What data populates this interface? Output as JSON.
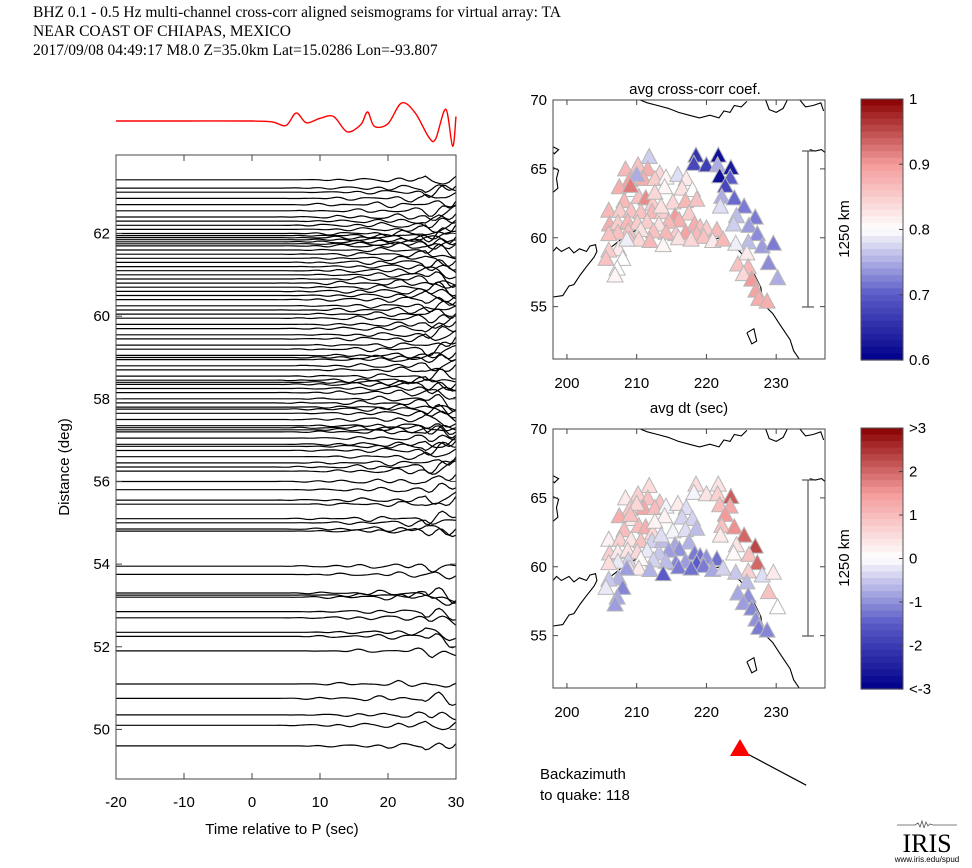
{
  "header": {
    "line1": "BHZ  0.1 - 0.5 Hz  multi-channel cross-corr aligned seismograms for virtual array: TA",
    "line2": "NEAR COAST OF CHIAPAS, MEXICO",
    "line3": "2017/09/08  04:49:17  M8.0  Z=35.0km Lat=15.0286 Lon=-93.807"
  },
  "colors": {
    "stack_trace": "#ff0000",
    "traces": "#000000",
    "quake_marker": "#ff0000",
    "colormap_low": "#000080",
    "colormap_mid": "#ffffff",
    "colormap_high": "#800000"
  },
  "backazimuth": {
    "line1": "Backazimuth",
    "line2": "to quake:  118",
    "value_deg": 118
  },
  "logo": {
    "name": "IRIS",
    "url_text": "www.iris.edu/spud"
  },
  "chart_data": [
    {
      "id": "record-section",
      "type": "line",
      "title": "",
      "xlabel": "Time relative to P (sec)",
      "ylabel": "Distance (deg)",
      "xlim": [
        -20,
        30
      ],
      "ylim": [
        48.8,
        63.9
      ],
      "xticks": [
        -20,
        -10,
        0,
        10,
        20,
        30
      ],
      "yticks": [
        50,
        52,
        54,
        56,
        58,
        60,
        62
      ],
      "grid": false,
      "trace_distances_deg": [
        63.3,
        63.1,
        63.0,
        62.85,
        62.7,
        62.55,
        62.4,
        62.3,
        62.2,
        62.1,
        62.0,
        61.95,
        61.9,
        61.85,
        61.8,
        61.75,
        61.7,
        61.6,
        61.5,
        61.4,
        61.3,
        61.2,
        61.1,
        61.0,
        60.9,
        60.8,
        60.7,
        60.6,
        60.5,
        60.4,
        60.25,
        60.15,
        60.05,
        59.95,
        59.8,
        59.7,
        59.55,
        59.45,
        59.3,
        59.2,
        59.05,
        59.0,
        58.95,
        58.8,
        58.7,
        58.55,
        58.45,
        58.4,
        58.35,
        58.25,
        58.15,
        58.0,
        57.9,
        57.8,
        57.75,
        57.65,
        57.5,
        57.35,
        57.3,
        57.25,
        57.2,
        57.05,
        56.9,
        56.85,
        56.75,
        56.6,
        56.45,
        56.35,
        56.25,
        56.0,
        55.8,
        55.55,
        55.45,
        55.1,
        55.0,
        54.85,
        54.8,
        53.95,
        53.75,
        53.3,
        53.25,
        53.2,
        52.85,
        52.7,
        52.35,
        52.25,
        51.9,
        51.1,
        50.75,
        50.35,
        50.1,
        49.6
      ],
      "stack_trace": {
        "label": "stack",
        "color": "#ff0000",
        "t": [
          -20,
          -10,
          0,
          3,
          5,
          6.5,
          8,
          10,
          12,
          14,
          16,
          17,
          18,
          20,
          22,
          24,
          26,
          27,
          28.5,
          29.5,
          30
        ],
        "amp": [
          0,
          0,
          0,
          -0.1,
          -0.5,
          0.9,
          -0.2,
          0.3,
          0.5,
          -1.2,
          -0.4,
          1.0,
          -0.6,
          -0.3,
          2.0,
          0.9,
          -1.8,
          -2.0,
          1.3,
          -2.8,
          0.5
        ]
      }
    },
    {
      "id": "map-cc",
      "type": "scatter",
      "title": "avg cross-corr coef.",
      "xlabel": "",
      "ylabel": "",
      "xlim": [
        198,
        237
      ],
      "ylim": [
        51.2,
        70
      ],
      "xticks": [
        200,
        210,
        220,
        230
      ],
      "yticks": [
        55,
        60,
        65,
        70
      ],
      "colorbar": {
        "min": 0.6,
        "max": 1.0,
        "ticks": [
          "0.6",
          "0.7",
          "0.8",
          "0.9",
          "1"
        ],
        "tick_values": [
          0.6,
          0.7,
          0.8,
          0.9,
          1.0
        ]
      },
      "scale_bar_label": "1250 km",
      "marker": "triangle"
    },
    {
      "id": "map-dt",
      "type": "scatter",
      "title": "avg dt (sec)",
      "xlabel": "",
      "ylabel": "",
      "xlim": [
        198,
        237
      ],
      "ylim": [
        51.2,
        70
      ],
      "xticks": [
        200,
        210,
        220,
        230
      ],
      "yticks": [
        55,
        60,
        65,
        70
      ],
      "colorbar": {
        "min": -3,
        "max": 3,
        "ticks": [
          "<-3",
          "-2",
          "-1",
          "0",
          "1",
          "2",
          ">3"
        ],
        "tick_values": [
          -3,
          -2,
          -1,
          0,
          1,
          2,
          3
        ]
      },
      "scale_bar_label": "1250 km",
      "marker": "triangle"
    }
  ],
  "stations": [
    {
      "lon": 218.5,
      "lat": 66.0,
      "cc": 0.66,
      "dt": 0.5
    },
    {
      "lon": 221.7,
      "lat": 66.0,
      "cc": 0.62,
      "dt": 0.4
    },
    {
      "lon": 218.2,
      "lat": 65.4,
      "cc": 0.68,
      "dt": -0.1
    },
    {
      "lon": 220.0,
      "lat": 65.3,
      "cc": 0.67,
      "dt": 0.4
    },
    {
      "lon": 221.6,
      "lat": 65.3,
      "cc": 0.75,
      "dt": 0.7
    },
    {
      "lon": 223.5,
      "lat": 65.1,
      "cc": 0.63,
      "dt": 2.1
    },
    {
      "lon": 221.9,
      "lat": 64.5,
      "cc": 0.62,
      "dt": 1.0
    },
    {
      "lon": 223.4,
      "lat": 64.4,
      "cc": 0.7,
      "dt": 1.3
    },
    {
      "lon": 222.7,
      "lat": 63.8,
      "cc": 0.68,
      "dt": 1.5
    },
    {
      "lon": 222.2,
      "lat": 63.0,
      "cc": 0.75,
      "dt": 0.9
    },
    {
      "lon": 224.0,
      "lat": 62.9,
      "cc": 0.71,
      "dt": 1.6
    },
    {
      "lon": 222.0,
      "lat": 62.3,
      "cc": 0.78,
      "dt": 0.3
    },
    {
      "lon": 225.4,
      "lat": 62.3,
      "cc": 0.72,
      "dt": 2.0
    },
    {
      "lon": 224.3,
      "lat": 61.6,
      "cc": 0.76,
      "dt": 0.4
    },
    {
      "lon": 227.0,
      "lat": 61.5,
      "cc": 0.72,
      "dt": 2.3
    },
    {
      "lon": 223.9,
      "lat": 61.0,
      "cc": 0.77,
      "dt": 0.1
    },
    {
      "lon": 226.1,
      "lat": 60.9,
      "cc": 0.74,
      "dt": 0.9
    },
    {
      "lon": 227.3,
      "lat": 60.3,
      "cc": 0.73,
      "dt": 2.0
    },
    {
      "lon": 226.0,
      "lat": 59.7,
      "cc": 0.76,
      "dt": 0.7
    },
    {
      "lon": 228.0,
      "lat": 59.4,
      "cc": 0.74,
      "dt": -0.3
    },
    {
      "lon": 229.6,
      "lat": 59.6,
      "cc": 0.72,
      "dt": 0.3
    },
    {
      "lon": 228.9,
      "lat": 58.2,
      "cc": 0.73,
      "dt": 0.9
    },
    {
      "lon": 230.2,
      "lat": 57.1,
      "cc": 0.75,
      "dt": 0.0
    },
    {
      "lon": 224.2,
      "lat": 59.6,
      "cc": 0.79,
      "dt": -0.5
    },
    {
      "lon": 225.8,
      "lat": 58.9,
      "cc": 0.82,
      "dt": -0.6
    },
    {
      "lon": 224.5,
      "lat": 58.1,
      "cc": 0.86,
      "dt": -0.8
    },
    {
      "lon": 226.0,
      "lat": 57.9,
      "cc": 0.87,
      "dt": -1.0
    },
    {
      "lon": 225.3,
      "lat": 57.4,
      "cc": 0.84,
      "dt": -0.9
    },
    {
      "lon": 226.5,
      "lat": 57.0,
      "cc": 0.9,
      "dt": -1.1
    },
    {
      "lon": 227.1,
      "lat": 56.2,
      "cc": 0.89,
      "dt": -1.0
    },
    {
      "lon": 227.5,
      "lat": 55.6,
      "cc": 0.88,
      "dt": -1.2
    },
    {
      "lon": 228.7,
      "lat": 55.4,
      "cc": 0.88,
      "dt": -1.1
    },
    {
      "lon": 211.8,
      "lat": 65.9,
      "cc": 0.77,
      "dt": 0.5
    },
    {
      "lon": 210.2,
      "lat": 65.3,
      "cc": 0.86,
      "dt": 0.7
    },
    {
      "lon": 211.6,
      "lat": 65.0,
      "cc": 0.88,
      "dt": 0.9
    },
    {
      "lon": 208.4,
      "lat": 65.0,
      "cc": 0.87,
      "dt": 0.3
    },
    {
      "lon": 213.3,
      "lat": 64.7,
      "cc": 0.84,
      "dt": 0.9
    },
    {
      "lon": 211.0,
      "lat": 64.3,
      "cc": 0.88,
      "dt": 1.3
    },
    {
      "lon": 209.0,
      "lat": 64.2,
      "cc": 0.89,
      "dt": 0.8
    },
    {
      "lon": 212.6,
      "lat": 64.3,
      "cc": 0.85,
      "dt": 1.0
    },
    {
      "lon": 214.2,
      "lat": 64.4,
      "cc": 0.81,
      "dt": -0.1
    },
    {
      "lon": 215.9,
      "lat": 64.6,
      "cc": 0.78,
      "dt": 0.3
    },
    {
      "lon": 217.1,
      "lat": 64.3,
      "cc": 0.82,
      "dt": -0.3
    },
    {
      "lon": 207.5,
      "lat": 63.7,
      "cc": 0.88,
      "dt": 1.2
    },
    {
      "lon": 209.4,
      "lat": 63.5,
      "cc": 0.8,
      "dt": 0.3
    },
    {
      "lon": 214.0,
      "lat": 63.7,
      "cc": 0.81,
      "dt": 0.2
    },
    {
      "lon": 216.5,
      "lat": 63.6,
      "cc": 0.83,
      "dt": -0.4
    },
    {
      "lon": 218.0,
      "lat": 63.5,
      "cc": 0.8,
      "dt": -0.4
    },
    {
      "lon": 210.3,
      "lat": 63.0,
      "cc": 0.86,
      "dt": 1.0
    },
    {
      "lon": 211.3,
      "lat": 62.9,
      "cc": 0.91,
      "dt": 1.2
    },
    {
      "lon": 208.2,
      "lat": 62.7,
      "cc": 0.87,
      "dt": 1.0
    },
    {
      "lon": 212.3,
      "lat": 62.5,
      "cc": 0.85,
      "dt": 0.6
    },
    {
      "lon": 215.2,
      "lat": 62.6,
      "cc": 0.84,
      "dt": -0.1
    },
    {
      "lon": 217.0,
      "lat": 62.7,
      "cc": 0.87,
      "dt": -0.3
    },
    {
      "lon": 218.6,
      "lat": 62.8,
      "cc": 0.86,
      "dt": -0.6
    },
    {
      "lon": 206.0,
      "lat": 62.0,
      "cc": 0.87,
      "dt": 0.2
    },
    {
      "lon": 207.6,
      "lat": 62.0,
      "cc": 0.85,
      "dt": 0.7
    },
    {
      "lon": 209.2,
      "lat": 62.0,
      "cc": 0.86,
      "dt": 0.4
    },
    {
      "lon": 210.6,
      "lat": 61.9,
      "cc": 0.86,
      "dt": 0.9
    },
    {
      "lon": 212.2,
      "lat": 61.9,
      "cc": 0.87,
      "dt": -0.4
    },
    {
      "lon": 213.7,
      "lat": 61.9,
      "cc": 0.85,
      "dt": -0.6
    },
    {
      "lon": 215.5,
      "lat": 61.6,
      "cc": 0.9,
      "dt": -0.8
    },
    {
      "lon": 217.5,
      "lat": 61.8,
      "cc": 0.85,
      "dt": -0.7
    },
    {
      "lon": 216.1,
      "lat": 61.3,
      "cc": 0.88,
      "dt": -1.0
    },
    {
      "lon": 214.6,
      "lat": 61.2,
      "cc": 0.87,
      "dt": -0.9
    },
    {
      "lon": 218.3,
      "lat": 61.0,
      "cc": 0.88,
      "dt": -1.2
    },
    {
      "lon": 219.1,
      "lat": 60.8,
      "cc": 0.86,
      "dt": -1.3
    },
    {
      "lon": 220.0,
      "lat": 60.7,
      "cc": 0.85,
      "dt": -1.0
    },
    {
      "lon": 221.5,
      "lat": 60.6,
      "cc": 0.87,
      "dt": -1.3
    },
    {
      "lon": 206.1,
      "lat": 61.0,
      "cc": 0.88,
      "dt": 0.7
    },
    {
      "lon": 207.3,
      "lat": 61.1,
      "cc": 0.85,
      "dt": 0.3
    },
    {
      "lon": 208.7,
      "lat": 61.2,
      "cc": 0.87,
      "dt": 0.4
    },
    {
      "lon": 210.1,
      "lat": 61.1,
      "cc": 0.85,
      "dt": 0.6
    },
    {
      "lon": 211.5,
      "lat": 61.2,
      "cc": 0.85,
      "dt": -0.2
    },
    {
      "lon": 213.2,
      "lat": 61.0,
      "cc": 0.83,
      "dt": -0.5
    },
    {
      "lon": 217.0,
      "lat": 60.4,
      "cc": 0.89,
      "dt": -0.9
    },
    {
      "lon": 218.6,
      "lat": 60.3,
      "cc": 0.87,
      "dt": -1.5
    },
    {
      "lon": 219.6,
      "lat": 60.1,
      "cc": 0.86,
      "dt": -1.2
    },
    {
      "lon": 215.6,
      "lat": 60.3,
      "cc": 0.85,
      "dt": -1.1
    },
    {
      "lon": 214.2,
      "lat": 60.4,
      "cc": 0.87,
      "dt": -0.6
    },
    {
      "lon": 212.4,
      "lat": 60.5,
      "cc": 0.86,
      "dt": -0.4
    },
    {
      "lon": 210.6,
      "lat": 60.6,
      "cc": 0.83,
      "dt": 0.1
    },
    {
      "lon": 208.8,
      "lat": 60.5,
      "cc": 0.86,
      "dt": -0.4
    },
    {
      "lon": 207.3,
      "lat": 60.4,
      "cc": 0.86,
      "dt": -0.2
    },
    {
      "lon": 206.0,
      "lat": 60.3,
      "cc": 0.86,
      "dt": 0.5
    },
    {
      "lon": 209.0,
      "lat": 59.9,
      "cc": 0.86,
      "dt": 0.4
    },
    {
      "lon": 210.3,
      "lat": 59.9,
      "cc": 0.84,
      "dt": 0.3
    },
    {
      "lon": 211.9,
      "lat": 59.8,
      "cc": 0.87,
      "dt": -0.7
    },
    {
      "lon": 216.0,
      "lat": 60.0,
      "cc": 0.83,
      "dt": -1.2
    },
    {
      "lon": 217.8,
      "lat": 59.9,
      "cc": 0.84,
      "dt": -1.3
    },
    {
      "lon": 213.8,
      "lat": 59.5,
      "cc": 0.81,
      "dt": -1.5
    },
    {
      "lon": 220.9,
      "lat": 59.8,
      "cc": 0.82,
      "dt": -0.8
    },
    {
      "lon": 222.4,
      "lat": 59.9,
      "cc": 0.87,
      "dt": -0.4
    },
    {
      "lon": 207.4,
      "lat": 59.2,
      "cc": 0.82,
      "dt": -0.7
    },
    {
      "lon": 206.0,
      "lat": 59.1,
      "cc": 0.85,
      "dt": -0.5
    },
    {
      "lon": 205.6,
      "lat": 58.5,
      "cc": 0.86,
      "dt": -0.2
    },
    {
      "lon": 208.0,
      "lat": 58.5,
      "cc": 0.8,
      "dt": -1.1
    },
    {
      "lon": 207.2,
      "lat": 57.8,
      "cc": 0.8,
      "dt": -0.8
    },
    {
      "lon": 206.9,
      "lat": 57.3,
      "cc": 0.81,
      "dt": -0.9
    },
    {
      "lon": 208.6,
      "lat": 59.9,
      "cc": 0.79,
      "dt": -0.9
    },
    {
      "lon": 212.6,
      "lat": 63.3,
      "cc": 0.84,
      "dt": 0.2
    },
    {
      "lon": 213.5,
      "lat": 62.3,
      "cc": 0.83,
      "dt": -0.3
    },
    {
      "lon": 210.0,
      "lat": 64.6,
      "cc": 0.75,
      "dt": 0.6
    },
    {
      "lon": 209.1,
      "lat": 63.8,
      "cc": 0.92,
      "dt": 0.9
    }
  ],
  "map_coastlines": [
    [
      [
        198.0,
        66.6
      ],
      [
        198.8,
        66.4
      ],
      [
        198.2,
        66.1
      ],
      [
        198.0,
        66.2
      ]
    ],
    [
      [
        198.0,
        65.1
      ],
      [
        198.8,
        64.9
      ],
      [
        198.5,
        64.3
      ],
      [
        198.7,
        63.6
      ],
      [
        198.0,
        63.3
      ]
    ],
    [
      [
        198.0,
        55.7
      ],
      [
        199.4,
        55.8
      ],
      [
        200.3,
        56.5
      ],
      [
        201.0,
        56.6
      ],
      [
        201.9,
        57.3
      ],
      [
        202.8,
        57.9
      ],
      [
        203.9,
        58.6
      ],
      [
        204.3,
        59.0
      ],
      [
        204.1,
        59.5
      ],
      [
        203.3,
        59.4
      ],
      [
        202.8,
        59.0
      ],
      [
        201.8,
        59.2
      ],
      [
        201.0,
        58.9
      ],
      [
        200.3,
        59.3
      ],
      [
        199.2,
        59.0
      ],
      [
        198.5,
        59.3
      ],
      [
        198.0,
        59.0
      ]
    ],
    [
      [
        204.8,
        58.2
      ],
      [
        205.4,
        58.7
      ],
      [
        206.0,
        59.2
      ],
      [
        206.8,
        59.5
      ],
      [
        207.8,
        59.9
      ],
      [
        208.7,
        60.2
      ],
      [
        209.7,
        60.5
      ],
      [
        210.7,
        60.6
      ]
    ],
    [
      [
        206.3,
        57.2
      ],
      [
        206.8,
        57.7
      ],
      [
        207.3,
        57.7
      ],
      [
        207.6,
        57.3
      ]
    ],
    [
      [
        218.6,
        60.1
      ],
      [
        219.8,
        60.0
      ],
      [
        221.0,
        59.9
      ],
      [
        222.0,
        60.0
      ],
      [
        223.2,
        59.6
      ],
      [
        224.0,
        59.3
      ],
      [
        224.8,
        59.0
      ],
      [
        225.3,
        58.7
      ],
      [
        226.0,
        58.3
      ],
      [
        226.6,
        57.6
      ],
      [
        227.2,
        57.0
      ],
      [
        227.8,
        56.4
      ],
      [
        228.0,
        55.7
      ],
      [
        228.5,
        55.0
      ],
      [
        229.5,
        54.5
      ],
      [
        230.4,
        53.8
      ],
      [
        231.2,
        53.2
      ],
      [
        232.0,
        52.6
      ],
      [
        232.5,
        51.8
      ],
      [
        233.3,
        51.2
      ]
    ],
    [
      [
        225.8,
        53.1
      ],
      [
        226.8,
        53.4
      ],
      [
        227.2,
        52.5
      ],
      [
        226.5,
        52.3
      ],
      [
        225.8,
        53.1
      ]
    ],
    [
      [
        210.5,
        70.0
      ],
      [
        211.5,
        69.8
      ],
      [
        213.0,
        69.6
      ],
      [
        214.5,
        69.4
      ],
      [
        216.0,
        69.1
      ],
      [
        217.5,
        68.9
      ],
      [
        219.0,
        68.7
      ],
      [
        220.5,
        68.9
      ],
      [
        221.8,
        68.7
      ],
      [
        222.5,
        69.2
      ],
      [
        223.4,
        69.1
      ],
      [
        224.0,
        69.6
      ],
      [
        225.0,
        69.5
      ],
      [
        225.8,
        69.9
      ]
    ],
    [
      [
        228.5,
        70.0
      ],
      [
        229.0,
        69.3
      ],
      [
        230.0,
        69.1
      ],
      [
        231.0,
        69.4
      ],
      [
        231.6,
        70.0
      ]
    ],
    [
      [
        233.4,
        70.0
      ],
      [
        234.2,
        69.5
      ],
      [
        235.3,
        69.6
      ],
      [
        236.4,
        69.8
      ],
      [
        236.8,
        69.2
      ]
    ],
    [
      [
        234.8,
        66.4
      ],
      [
        235.6,
        66.3
      ],
      [
        236.5,
        66.4
      ],
      [
        237.0,
        66.2
      ]
    ]
  ]
}
